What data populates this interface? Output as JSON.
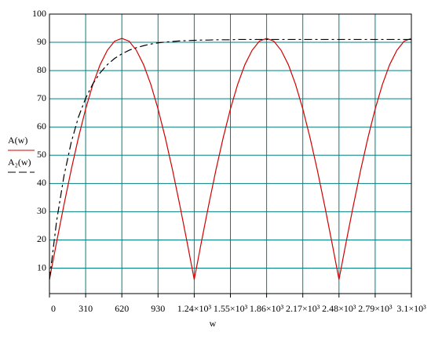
{
  "chart_data": {
    "type": "line",
    "xlabel": "w",
    "x": [
      0,
      62,
      124,
      186,
      248,
      310,
      372,
      434,
      496,
      558,
      620,
      682,
      744,
      806,
      868,
      930,
      992,
      1054,
      1116,
      1178,
      1240,
      1302,
      1364,
      1426,
      1488,
      1550,
      1612,
      1674,
      1736,
      1798,
      1860,
      1922,
      1984,
      2046,
      2108,
      2170,
      2232,
      2294,
      2356,
      2418,
      2480,
      2542,
      2604,
      2666,
      2728,
      2790,
      2852,
      2914,
      2976,
      3038,
      3100
    ],
    "series": [
      {
        "name": "A(w)",
        "color": "#d40000",
        "style": "solid",
        "values": [
          6,
          19.4,
          32.4,
          44.8,
          56.2,
          66.4,
          75.1,
          82.1,
          87.2,
          90.4,
          91.4,
          90.4,
          87.2,
          82.1,
          75.1,
          66.4,
          56.2,
          44.8,
          32.4,
          19.4,
          6,
          19.4,
          32.4,
          44.8,
          56.2,
          66.4,
          75.1,
          82.1,
          87.2,
          90.4,
          91.4,
          90.4,
          87.2,
          82.1,
          75.1,
          66.4,
          56.2,
          44.8,
          32.4,
          19.4,
          6,
          19.4,
          32.4,
          44.8,
          56.2,
          66.4,
          75.1,
          82.1,
          87.2,
          90.4,
          91.4
        ]
      },
      {
        "name": "A₂(w)",
        "color": "#000000",
        "style": "dashed",
        "values": [
          6,
          26.9,
          42.6,
          54.5,
          63.5,
          70.2,
          75.3,
          79.2,
          82.1,
          84.3,
          85.9,
          87.2,
          88.1,
          88.8,
          89.4,
          89.8,
          90.1,
          90.3,
          90.5,
          90.6,
          90.7,
          90.8,
          90.8,
          90.9,
          90.9,
          90.9,
          91,
          91,
          91,
          91,
          91,
          91,
          91,
          91,
          91,
          91,
          91,
          91,
          91,
          91,
          91,
          91,
          91,
          91,
          91,
          91,
          91,
          91,
          91,
          91,
          91
        ]
      }
    ],
    "xlim": [
      0,
      3100
    ],
    "ylim": [
      1,
      100
    ],
    "xticks": [
      0,
      310,
      620,
      930,
      {
        "value": 1240,
        "label": "1.24×10³"
      },
      {
        "value": 1550,
        "label": "1.55×10³"
      },
      {
        "value": 1860,
        "label": "1.86×10³"
      },
      {
        "value": 2170,
        "label": "2.17×10³"
      },
      {
        "value": 2480,
        "label": "2.48×10³"
      },
      {
        "value": 2790,
        "label": "2.79×10³"
      },
      {
        "value": 3100,
        "label": "3.1×10³"
      }
    ],
    "yticks": [
      10,
      20,
      30,
      40,
      50,
      60,
      70,
      80,
      90,
      100
    ],
    "grid": true,
    "grid_color": "#008080"
  }
}
